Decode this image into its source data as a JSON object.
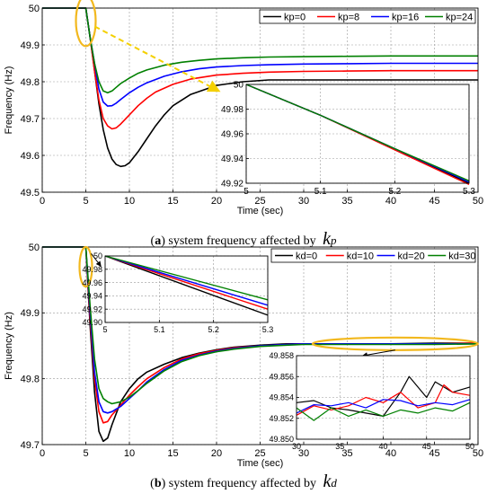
{
  "captions": {
    "a": {
      "letter": "a",
      "text": "system frequency affected by",
      "symbol": "k",
      "sub": "p"
    },
    "b": {
      "letter": "b",
      "text": "system frequency affected by",
      "symbol": "k",
      "sub": "d"
    }
  },
  "colors": {
    "black": "#000000",
    "red": "#ff0000",
    "blue": "#0000ff",
    "green": "#008000",
    "highlight": "#f2b81e"
  },
  "chart_data": [
    {
      "id": "a-main",
      "type": "line",
      "xlabel": "Time (sec)",
      "ylabel": "Frequency (Hz)",
      "xlim": [
        0,
        50
      ],
      "ylim": [
        49.5,
        50
      ],
      "xticks": [
        "0",
        "5",
        "10",
        "15",
        "20",
        "25",
        "30",
        "35",
        "40",
        "45",
        "50"
      ],
      "yticks": [
        "49.5",
        "49.6",
        "49.7",
        "49.8",
        "49.9",
        "50"
      ],
      "legend": {
        "position": "top-right",
        "entries": [
          "kp=0",
          "kp=8",
          "kp=16",
          "kp=24"
        ]
      },
      "grid": true,
      "series": [
        {
          "name": "kp=0",
          "color": "black",
          "x": [
            0,
            5,
            5.5,
            6,
            6.5,
            7,
            7.5,
            8,
            8.5,
            9,
            9.5,
            10,
            11,
            12,
            13,
            14,
            15,
            17,
            20,
            23,
            26,
            30,
            35,
            40,
            45,
            50
          ],
          "y": [
            50,
            50,
            49.92,
            49.83,
            49.74,
            49.67,
            49.62,
            49.59,
            49.575,
            49.57,
            49.572,
            49.58,
            49.61,
            49.645,
            49.68,
            49.71,
            49.735,
            49.765,
            49.79,
            49.8,
            49.805,
            49.805,
            49.805,
            49.805,
            49.805,
            49.805
          ]
        },
        {
          "name": "kp=8",
          "color": "red",
          "x": [
            0,
            5,
            5.5,
            6,
            6.5,
            7,
            7.5,
            8,
            8.5,
            9,
            10,
            11,
            12,
            13,
            15,
            17,
            20,
            23,
            26,
            30,
            35,
            40,
            45,
            50
          ],
          "y": [
            50,
            50,
            49.92,
            49.83,
            49.75,
            49.7,
            49.68,
            49.672,
            49.675,
            49.685,
            49.71,
            49.735,
            49.755,
            49.772,
            49.793,
            49.807,
            49.818,
            49.823,
            49.826,
            49.828,
            49.829,
            49.83,
            49.83,
            49.83
          ]
        },
        {
          "name": "kp=16",
          "color": "blue",
          "x": [
            0,
            5,
            5.5,
            6,
            6.5,
            7,
            7.5,
            8,
            8.5,
            9,
            10,
            11,
            12,
            14,
            16,
            18,
            20,
            23,
            26,
            30,
            35,
            40,
            45,
            50
          ],
          "y": [
            50,
            50,
            49.92,
            49.85,
            49.78,
            49.745,
            49.734,
            49.735,
            49.742,
            49.752,
            49.77,
            49.785,
            49.797,
            49.815,
            49.827,
            49.835,
            49.84,
            49.844,
            49.846,
            49.848,
            49.849,
            49.85,
            49.85,
            49.85
          ]
        },
        {
          "name": "kp=24",
          "color": "green",
          "x": [
            0,
            5,
            5.5,
            6,
            6.5,
            7,
            7.5,
            8,
            8.5,
            9,
            10,
            11,
            12,
            14,
            16,
            18,
            20,
            23,
            26,
            30,
            35,
            40,
            45,
            50
          ],
          "y": [
            50,
            50,
            49.92,
            49.85,
            49.8,
            49.775,
            49.77,
            49.775,
            49.785,
            49.795,
            49.81,
            49.823,
            49.832,
            49.845,
            49.853,
            49.858,
            49.862,
            49.865,
            49.867,
            49.868,
            49.869,
            49.87,
            49.87,
            49.87
          ]
        }
      ]
    },
    {
      "id": "a-inset",
      "type": "line",
      "xlim": [
        5,
        5.3
      ],
      "ylim": [
        49.92,
        50
      ],
      "xticks": [
        "5",
        "5.1",
        "5.2",
        "5.3"
      ],
      "yticks": [
        "49.92",
        "49.94",
        "49.96",
        "49.98",
        "50"
      ],
      "grid": true,
      "series": [
        {
          "name": "kp=0",
          "color": "black",
          "x": [
            5,
            5.1,
            5.2,
            5.3
          ],
          "y": [
            50,
            49.975,
            49.948,
            49.92
          ]
        },
        {
          "name": "kp=8",
          "color": "red",
          "x": [
            5,
            5.1,
            5.2,
            5.3
          ],
          "y": [
            50,
            49.975,
            49.947,
            49.919
          ]
        },
        {
          "name": "kp=16",
          "color": "blue",
          "x": [
            5,
            5.1,
            5.2,
            5.3
          ],
          "y": [
            50,
            49.975,
            49.948,
            49.921
          ]
        },
        {
          "name": "kp=24",
          "color": "green",
          "x": [
            5,
            5.1,
            5.2,
            5.3
          ],
          "y": [
            50,
            49.975,
            49.948,
            49.922
          ]
        }
      ]
    },
    {
      "id": "b-main",
      "type": "line",
      "xlabel": "Time (sec)",
      "ylabel": "Frequency (Hz)",
      "xlim": [
        0,
        50
      ],
      "ylim": [
        49.7,
        50
      ],
      "xticks": [
        "0",
        "5",
        "10",
        "15",
        "20",
        "25",
        "30",
        "35",
        "40",
        "45",
        "50"
      ],
      "yticks": [
        "49.7",
        "49.8",
        "49.9",
        "50"
      ],
      "legend": {
        "position": "top-right",
        "entries": [
          "kd=0",
          "kd=10",
          "kd=20",
          "kd=30"
        ]
      },
      "grid": true,
      "series": [
        {
          "name": "kd=0",
          "color": "black",
          "x": [
            0,
            5,
            5.5,
            6,
            6.5,
            7,
            7.5,
            8,
            9,
            10,
            11,
            12,
            14,
            16,
            18,
            20,
            22,
            25,
            28,
            30,
            35,
            40,
            45,
            50
          ],
          "y": [
            50,
            50,
            49.88,
            49.78,
            49.72,
            49.705,
            49.71,
            49.73,
            49.765,
            49.785,
            49.8,
            49.81,
            49.822,
            49.832,
            49.839,
            49.844,
            49.848,
            49.851,
            49.853,
            49.853,
            49.853,
            49.853,
            49.854,
            49.854
          ]
        },
        {
          "name": "kd=10",
          "color": "red",
          "x": [
            0,
            5,
            5.5,
            6,
            6.5,
            7,
            7.5,
            8,
            9,
            10,
            11,
            12,
            14,
            16,
            18,
            20,
            22,
            25,
            28,
            30,
            35,
            40,
            45,
            50
          ],
          "y": [
            50,
            50,
            49.89,
            49.8,
            49.75,
            49.733,
            49.735,
            49.745,
            49.76,
            49.775,
            49.788,
            49.8,
            49.817,
            49.83,
            49.838,
            49.843,
            49.847,
            49.85,
            49.852,
            49.853,
            49.853,
            49.853,
            49.853,
            49.854
          ]
        },
        {
          "name": "kd=20",
          "color": "blue",
          "x": [
            0,
            5,
            5.5,
            6,
            6.5,
            7,
            7.5,
            8,
            9,
            10,
            11,
            12,
            14,
            16,
            18,
            20,
            22,
            25,
            28,
            30,
            35,
            40,
            45,
            50
          ],
          "y": [
            50,
            50,
            49.9,
            49.81,
            49.765,
            49.75,
            49.748,
            49.75,
            49.758,
            49.77,
            49.782,
            49.795,
            49.814,
            49.828,
            49.836,
            49.842,
            49.846,
            49.85,
            49.852,
            49.853,
            49.853,
            49.853,
            49.853,
            49.853
          ]
        },
        {
          "name": "kd=30",
          "color": "green",
          "x": [
            0,
            5,
            5.5,
            6,
            6.5,
            7,
            7.5,
            8,
            9,
            10,
            11,
            12,
            14,
            16,
            18,
            20,
            22,
            25,
            28,
            30,
            35,
            40,
            45,
            50
          ],
          "y": [
            50,
            50,
            49.91,
            49.83,
            49.785,
            49.77,
            49.765,
            49.762,
            49.765,
            49.772,
            49.782,
            49.793,
            49.812,
            49.826,
            49.835,
            49.841,
            49.845,
            49.849,
            49.851,
            49.852,
            49.852,
            49.852,
            49.852,
            49.853
          ]
        }
      ]
    },
    {
      "id": "b-inset1",
      "type": "line",
      "xlim": [
        5,
        5.3
      ],
      "ylim": [
        49.9,
        50
      ],
      "xticks": [
        "5",
        "5.1",
        "5.2",
        "5.3"
      ],
      "yticks": [
        "49.90",
        "49.92",
        "49.94",
        "49.96",
        "49.98",
        "50"
      ],
      "grid": true,
      "series": [
        {
          "name": "kd=0",
          "color": "black",
          "x": [
            5,
            5.3
          ],
          "y": [
            50,
            49.911
          ]
        },
        {
          "name": "kd=10",
          "color": "red",
          "x": [
            5,
            5.3
          ],
          "y": [
            50,
            49.92
          ]
        },
        {
          "name": "kd=20",
          "color": "blue",
          "x": [
            5,
            5.3
          ],
          "y": [
            50,
            49.926
          ]
        },
        {
          "name": "kd=30",
          "color": "green",
          "x": [
            5,
            5.3
          ],
          "y": [
            50,
            49.934
          ]
        }
      ]
    },
    {
      "id": "b-inset2",
      "type": "line",
      "xlim": [
        30,
        50
      ],
      "ylim": [
        49.85,
        49.858
      ],
      "xticks": [
        "30",
        "35",
        "40",
        "45",
        "50"
      ],
      "yticks": [
        "49.850",
        "49.852",
        "49.854",
        "49.856",
        "49.858"
      ],
      "grid": true,
      "series": [
        {
          "name": "kd=0",
          "color": "black",
          "x": [
            30,
            32,
            34,
            36,
            38,
            40,
            42,
            43,
            44,
            45,
            46,
            48,
            50
          ],
          "y": [
            49.8535,
            49.8537,
            49.853,
            49.8528,
            49.8525,
            49.8522,
            49.8545,
            49.856,
            49.855,
            49.854,
            49.8555,
            49.8545,
            49.855
          ]
        },
        {
          "name": "kd=10",
          "color": "red",
          "x": [
            30,
            32,
            34,
            36,
            38,
            40,
            42,
            44,
            46,
            47,
            48,
            50
          ],
          "y": [
            49.8523,
            49.8532,
            49.8528,
            49.8532,
            49.854,
            49.8535,
            49.8545,
            49.853,
            49.8535,
            49.8552,
            49.8545,
            49.8542
          ]
        },
        {
          "name": "kd=20",
          "color": "blue",
          "x": [
            30,
            32,
            34,
            36,
            38,
            40,
            42,
            44,
            46,
            48,
            50
          ],
          "y": [
            49.8525,
            49.8533,
            49.8532,
            49.8535,
            49.853,
            49.8538,
            49.8537,
            49.8532,
            49.8535,
            49.8533,
            49.8538
          ]
        },
        {
          "name": "kd=30",
          "color": "green",
          "x": [
            30,
            32,
            34,
            36,
            38,
            40,
            42,
            44,
            46,
            48,
            50
          ],
          "y": [
            49.853,
            49.8518,
            49.853,
            49.8522,
            49.8528,
            49.8522,
            49.8528,
            49.8525,
            49.853,
            49.8527,
            49.8535
          ]
        }
      ]
    }
  ]
}
